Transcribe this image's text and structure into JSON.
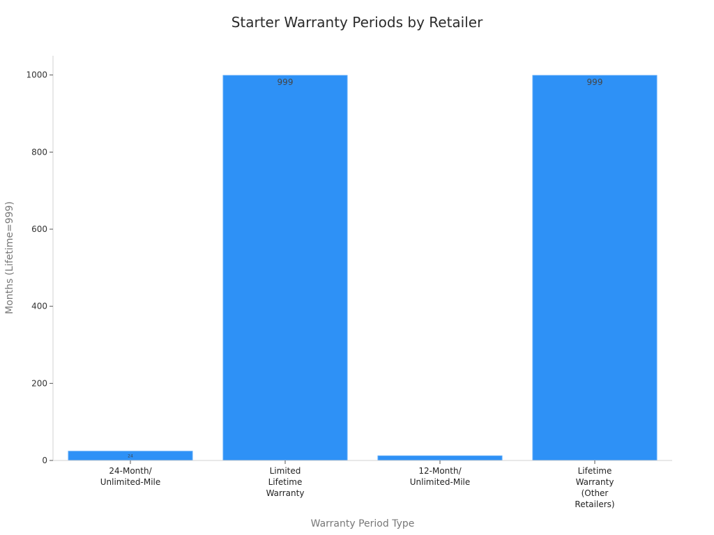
{
  "chart_data": {
    "type": "bar",
    "title": "Starter Warranty Periods by Retailer",
    "xlabel": "Warranty Period Type",
    "ylabel": "Months (Lifetime=999)",
    "categories": [
      [
        "24-Month/",
        "Unlimited-Mile"
      ],
      [
        "Limited",
        "Lifetime",
        "Warranty"
      ],
      [
        "12-Month/",
        "Unlimited-Mile"
      ],
      [
        "Lifetime",
        "Warranty",
        "(Other",
        "Retailers)"
      ]
    ],
    "values": [
      24,
      999,
      12,
      999
    ],
    "data_labels": [
      "24",
      "999",
      "",
      "999"
    ],
    "ylim": [
      0,
      1050
    ],
    "yticks": [
      0,
      200,
      400,
      600,
      800,
      1000
    ],
    "bar_color": "#2e91f6",
    "grid": false,
    "legend": "none"
  }
}
